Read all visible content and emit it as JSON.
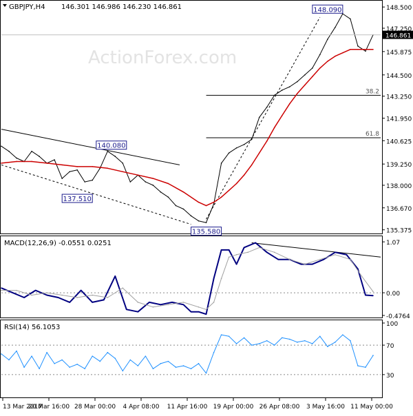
{
  "header": {
    "symbol_tf": "GBPJPY,H4",
    "ohlc": "146.301 146.986 146.230 146.861",
    "watermark": "ActionForex.com"
  },
  "colors": {
    "price": "#000000",
    "ma": "#cc0000",
    "macd": "#000080",
    "signal": "#a0a0a0",
    "rsi": "#1e90ff",
    "label_box": "#1a1a8c",
    "grid_dash": "#888888"
  },
  "chart_data": [
    {
      "type": "line",
      "title": "GBPJPY,H4",
      "ohlc_label": "146.301 146.986 146.230 146.861",
      "current_price_label": "146.861",
      "y_ticks": [
        "148.500",
        "147.250",
        "145.875",
        "144.500",
        "143.250",
        "141.950",
        "140.625",
        "139.250",
        "138.000",
        "136.670",
        "135.375"
      ],
      "ylim": [
        135.2,
        148.75
      ],
      "x_ticks": [
        "13 Mar 2017",
        "20 Mar 16:00",
        "28 Mar 00:00",
        "4 Apr 08:00",
        "11 Apr 16:00",
        "19 Apr 00:00",
        "26 Apr 08:00",
        "3 May 16:00",
        "11 May 00:00"
      ],
      "annotations": [
        {
          "label": "148.090",
          "x": 0.86,
          "value": 148.09
        },
        {
          "label": "140.080",
          "x": 0.29,
          "value": 140.08
        },
        {
          "label": "137.510",
          "x": 0.2,
          "value": 137.51
        },
        {
          "label": "135.580",
          "x": 0.54,
          "value": 135.58
        }
      ],
      "fib_levels": [
        {
          "label": "38.2",
          "value": 143.3
        },
        {
          "label": "61.8",
          "value": 140.8
        }
      ],
      "series": [
        {
          "name": "GBPJPY close",
          "x": [
            0,
            0.02,
            0.04,
            0.06,
            0.08,
            0.1,
            0.12,
            0.14,
            0.16,
            0.18,
            0.2,
            0.22,
            0.24,
            0.26,
            0.28,
            0.3,
            0.32,
            0.34,
            0.36,
            0.38,
            0.4,
            0.42,
            0.44,
            0.46,
            0.48,
            0.5,
            0.52,
            0.54,
            0.56,
            0.58,
            0.6,
            0.62,
            0.64,
            0.66,
            0.68,
            0.7,
            0.72,
            0.74,
            0.76,
            0.78,
            0.8,
            0.82,
            0.84,
            0.86,
            0.88,
            0.9,
            0.92,
            0.94,
            0.96,
            0.98
          ],
          "values": [
            140.3,
            140.0,
            139.6,
            139.4,
            140.0,
            139.7,
            139.3,
            139.5,
            138.4,
            138.8,
            138.9,
            138.2,
            138.3,
            139.0,
            140.0,
            139.7,
            139.3,
            138.2,
            138.6,
            138.2,
            138.0,
            137.6,
            137.3,
            136.8,
            136.6,
            136.2,
            135.9,
            135.8,
            136.9,
            139.3,
            139.9,
            140.2,
            140.4,
            140.7,
            142.0,
            142.6,
            143.3,
            143.6,
            143.8,
            144.1,
            144.5,
            144.9,
            145.7,
            146.6,
            147.3,
            148.1,
            147.8,
            146.2,
            145.9,
            146.86
          ]
        },
        {
          "name": "MA",
          "x": [
            0,
            0.04,
            0.08,
            0.12,
            0.16,
            0.2,
            0.24,
            0.28,
            0.32,
            0.36,
            0.4,
            0.44,
            0.48,
            0.52,
            0.54,
            0.56,
            0.58,
            0.6,
            0.62,
            0.64,
            0.66,
            0.68,
            0.7,
            0.72,
            0.74,
            0.76,
            0.78,
            0.8,
            0.82,
            0.84,
            0.86,
            0.88,
            0.9,
            0.92,
            0.94,
            0.96,
            0.98
          ],
          "values": [
            139.3,
            139.4,
            139.4,
            139.3,
            139.2,
            139.1,
            139.1,
            139.0,
            138.8,
            138.6,
            138.4,
            138.1,
            137.6,
            137.0,
            136.8,
            137.0,
            137.3,
            137.7,
            138.1,
            138.6,
            139.2,
            139.9,
            140.6,
            141.4,
            142.1,
            142.8,
            143.4,
            143.9,
            144.4,
            144.9,
            145.3,
            145.6,
            145.8,
            146.0,
            146.0,
            146.0,
            146.0
          ]
        }
      ],
      "trendlines": [
        {
          "from": [
            0.0,
            141.3
          ],
          "to": [
            0.47,
            139.2
          ]
        },
        {
          "from": [
            0.0,
            139.2
          ],
          "to": [
            0.5,
            135.7
          ]
        },
        {
          "from": [
            0.54,
            136.0
          ],
          "to": [
            0.84,
            147.9
          ]
        }
      ]
    },
    {
      "type": "line",
      "title": "MACD(12,26,9) -0.0551 0.0251",
      "y_ticks": [
        "1.07",
        "0.00",
        "-0.4764"
      ],
      "ylim": [
        -0.52,
        1.13
      ],
      "series": [
        {
          "name": "MACD",
          "x": [
            0,
            0.03,
            0.06,
            0.09,
            0.12,
            0.15,
            0.18,
            0.21,
            0.24,
            0.27,
            0.3,
            0.33,
            0.36,
            0.39,
            0.42,
            0.45,
            0.48,
            0.5,
            0.52,
            0.54,
            0.56,
            0.58,
            0.6,
            0.62,
            0.64,
            0.67,
            0.7,
            0.73,
            0.76,
            0.79,
            0.82,
            0.85,
            0.88,
            0.91,
            0.94,
            0.96,
            0.98
          ],
          "values": [
            0.1,
            0.0,
            -0.1,
            0.05,
            -0.05,
            -0.1,
            -0.2,
            0.05,
            -0.2,
            -0.15,
            0.35,
            -0.35,
            -0.4,
            -0.2,
            -0.25,
            -0.2,
            -0.25,
            -0.4,
            -0.4,
            -0.45,
            0.3,
            0.9,
            0.9,
            0.6,
            0.95,
            1.05,
            0.85,
            0.7,
            0.7,
            0.6,
            0.6,
            0.7,
            0.85,
            0.8,
            0.5,
            -0.05,
            -0.06
          ]
        },
        {
          "name": "Signal",
          "x": [
            0,
            0.04,
            0.08,
            0.12,
            0.16,
            0.2,
            0.24,
            0.28,
            0.32,
            0.36,
            0.4,
            0.44,
            0.48,
            0.52,
            0.54,
            0.56,
            0.58,
            0.6,
            0.62,
            0.65,
            0.68,
            0.72,
            0.76,
            0.8,
            0.84,
            0.88,
            0.92,
            0.95,
            0.98
          ],
          "values": [
            0.05,
            0.05,
            -0.05,
            0.0,
            -0.05,
            -0.1,
            -0.05,
            -0.1,
            0.1,
            -0.2,
            -0.3,
            -0.25,
            -0.2,
            -0.3,
            -0.35,
            -0.2,
            0.3,
            0.75,
            0.8,
            0.85,
            0.95,
            0.85,
            0.7,
            0.6,
            0.7,
            0.8,
            0.7,
            0.35,
            0.025
          ]
        }
      ],
      "trendlines": [
        {
          "from": [
            0.66,
            1.05
          ],
          "to": [
            1.0,
            0.75
          ]
        }
      ]
    },
    {
      "type": "line",
      "title": "RSI(14) 56.1053",
      "y_ticks": [
        "100",
        "70",
        "30"
      ],
      "ylim": [
        0,
        100
      ],
      "series": [
        {
          "name": "RSI",
          "x": [
            0,
            0.02,
            0.04,
            0.06,
            0.08,
            0.1,
            0.12,
            0.14,
            0.16,
            0.18,
            0.2,
            0.22,
            0.24,
            0.26,
            0.28,
            0.3,
            0.32,
            0.34,
            0.36,
            0.38,
            0.4,
            0.42,
            0.44,
            0.46,
            0.48,
            0.5,
            0.52,
            0.54,
            0.56,
            0.58,
            0.6,
            0.62,
            0.64,
            0.66,
            0.68,
            0.7,
            0.72,
            0.74,
            0.76,
            0.78,
            0.8,
            0.82,
            0.84,
            0.86,
            0.88,
            0.9,
            0.92,
            0.94,
            0.96,
            0.98
          ],
          "values": [
            58,
            50,
            62,
            40,
            55,
            38,
            60,
            45,
            50,
            40,
            44,
            38,
            55,
            48,
            60,
            52,
            35,
            50,
            42,
            55,
            38,
            45,
            48,
            40,
            42,
            38,
            45,
            32,
            60,
            84,
            82,
            72,
            80,
            70,
            72,
            76,
            70,
            80,
            78,
            74,
            76,
            72,
            82,
            68,
            74,
            84,
            76,
            42,
            40,
            56
          ]
        }
      ]
    }
  ]
}
